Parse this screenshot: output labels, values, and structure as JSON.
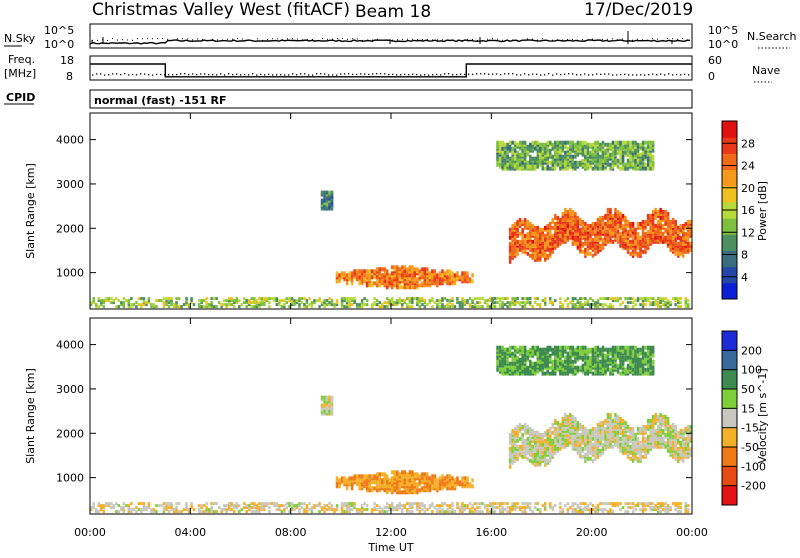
{
  "header": {
    "title": "Christmas Valley West (fitACF)",
    "beam": "Beam 18",
    "date": "17/Dec/2019"
  },
  "panels": {
    "nsky_label": "N.Sky",
    "nsky_ticks": [
      "10^5",
      "10^0"
    ],
    "nsearch_label": "N.Search",
    "nsearch_ticks": [
      "10^5",
      "10^0"
    ],
    "freq_label": "Freq.",
    "freq_unit": "[MHz]",
    "freq_ticks": [
      "18",
      "8"
    ],
    "nave_label": "Nave",
    "nave_ticks": [
      "60",
      "0"
    ],
    "cpid_label": "CPID",
    "cpid_text": "normal (fast) -151 RF"
  },
  "chart_data": {
    "type": "heatmap",
    "x_axis": {
      "label": "Time UT",
      "ticks": [
        "00:00",
        "04:00",
        "08:00",
        "12:00",
        "16:00",
        "20:00",
        "00:00"
      ],
      "range_hours": [
        0,
        24
      ]
    },
    "y_axis": {
      "label": "Slant Range [km]",
      "ticks": [
        "4000",
        "3000",
        "2000",
        "1000"
      ],
      "range_km": [
        180,
        4600
      ]
    },
    "frequency_steps": [
      {
        "from_hour": 0,
        "to_hour": 3,
        "mhz": 18
      },
      {
        "from_hour": 3,
        "to_hour": 15,
        "mhz": 10
      },
      {
        "from_hour": 15,
        "to_hour": 24,
        "mhz": 18
      }
    ],
    "power": {
      "colorbar_label": "Power [dB]",
      "colorbar_ticks": [
        "28",
        "24",
        "20",
        "16",
        "12",
        "8",
        "4"
      ],
      "range_db": [
        0,
        32
      ],
      "colors": [
        "#0a1fd6",
        "#2447a8",
        "#3a6c80",
        "#4d8f60",
        "#7fbf3f",
        "#b8d93a",
        "#f0c020",
        "#f59a1c",
        "#f06a1a",
        "#e8381a",
        "#e01010"
      ]
    },
    "velocity": {
      "colorbar_label": "Velocity [m s^-1]",
      "colorbar_ticks": [
        "200",
        "100",
        "50",
        "15",
        "-15",
        "-50",
        "-100",
        "-200"
      ],
      "colors": [
        "#1d2ad8",
        "#3a6a9c",
        "#3e8a50",
        "#7fcf3a",
        "#c8c8c0",
        "#f3b028",
        "#f07a18",
        "#e84a14",
        "#e01414"
      ]
    },
    "regions": [
      {
        "name": "near-range ground scatter",
        "t": [
          0,
          24
        ],
        "km": [
          200,
          420
        ],
        "power_db": 14,
        "velocity": -10
      },
      {
        "name": "midday E-region echo",
        "t": [
          9.8,
          15.2
        ],
        "km": [
          580,
          1120
        ],
        "power_db": 24,
        "velocity": -45
      },
      {
        "name": "evening F-region band",
        "t": [
          16.7,
          24
        ],
        "km": [
          1200,
          2400
        ],
        "power_db": 26,
        "velocity": 0
      },
      {
        "name": "far-range patch",
        "t": [
          16.2,
          22.5
        ],
        "km": [
          3300,
          3900
        ],
        "power_db": 12,
        "velocity": 60
      },
      {
        "name": "isolated echoes",
        "t": [
          9.2,
          9.6
        ],
        "km": [
          2400,
          2800
        ],
        "power_db": 8,
        "velocity": 0
      }
    ]
  }
}
